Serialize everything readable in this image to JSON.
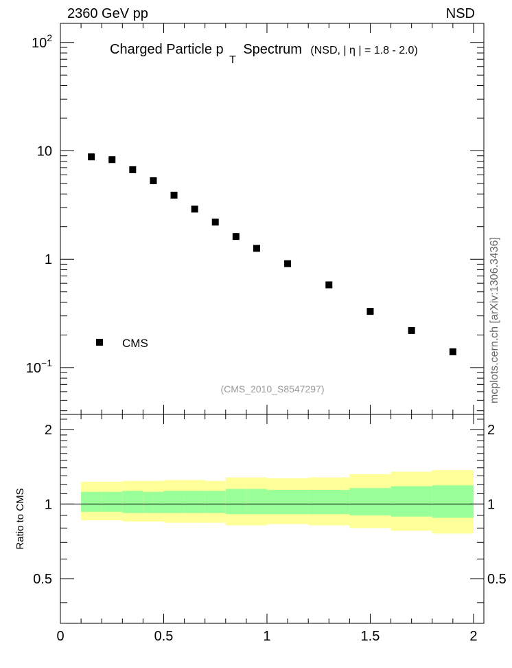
{
  "header": {
    "left": "2360 GeV pp",
    "right": "NSD"
  },
  "side_label": "mcplots.cern.ch [arXiv:1306.3436]",
  "colors": {
    "data": "#000000",
    "band_inner": "#99ff99",
    "band_outer": "#ffff99",
    "watermark": "#999999",
    "side_label": "#666666"
  },
  "chart_data": [
    {
      "type": "scatter",
      "title": "Charged Particle p",
      "title_subscript": "T",
      "title_suffix": "Spectrum",
      "subtitle_prefix": "(NSD, |",
      "subtitle_symbol": "η",
      "subtitle_suffix": "| = 1.8 - 2.0)",
      "watermark": "(CMS_2010_S8547297)",
      "legend": {
        "label": "CMS",
        "placement": "bottom-left"
      },
      "xlim": [
        0,
        2.05
      ],
      "ylim": [
        0.037,
        150
      ],
      "log_y": true,
      "y_ticks": [
        {
          "base": "10",
          "exp": "2",
          "value": 100
        },
        {
          "base": "10",
          "exp": "",
          "value": 10
        },
        {
          "base": "1",
          "exp": "",
          "value": 1
        },
        {
          "base": "10",
          "exp": "−1",
          "value": 0.1
        }
      ],
      "series": [
        {
          "name": "CMS",
          "x": [
            0.15,
            0.25,
            0.35,
            0.45,
            0.55,
            0.65,
            0.75,
            0.85,
            0.95,
            1.1,
            1.3,
            1.5,
            1.7,
            1.9
          ],
          "y": [
            8.8,
            8.3,
            6.7,
            5.3,
            3.9,
            2.9,
            2.2,
            1.62,
            1.26,
            0.91,
            0.58,
            0.33,
            0.22,
            0.14
          ]
        }
      ]
    },
    {
      "type": "area",
      "ylabel": "Ratio to CMS",
      "xlim": [
        0,
        2.05
      ],
      "ylim": [
        0.33,
        2.3
      ],
      "x_ticks": [
        "0",
        "0.5",
        "1",
        "1.5",
        "2"
      ],
      "x_tick_values": [
        0,
        0.5,
        1,
        1.5,
        2
      ],
      "y_ticks": [
        "0.5",
        "1",
        "2"
      ],
      "y_tick_values": [
        0.5,
        1,
        2
      ],
      "reference_line": 1,
      "bins": [
        {
          "lo": 0.1,
          "hi": 0.2,
          "inner": [
            0.93,
            1.12
          ],
          "outer": [
            0.86,
            1.23
          ]
        },
        {
          "lo": 0.2,
          "hi": 0.3,
          "inner": [
            0.93,
            1.12
          ],
          "outer": [
            0.86,
            1.23
          ]
        },
        {
          "lo": 0.3,
          "hi": 0.4,
          "inner": [
            0.92,
            1.13
          ],
          "outer": [
            0.85,
            1.24
          ]
        },
        {
          "lo": 0.4,
          "hi": 0.5,
          "inner": [
            0.92,
            1.12
          ],
          "outer": [
            0.85,
            1.24
          ]
        },
        {
          "lo": 0.5,
          "hi": 0.6,
          "inner": [
            0.92,
            1.13
          ],
          "outer": [
            0.84,
            1.25
          ]
        },
        {
          "lo": 0.6,
          "hi": 0.7,
          "inner": [
            0.92,
            1.13
          ],
          "outer": [
            0.84,
            1.25
          ]
        },
        {
          "lo": 0.7,
          "hi": 0.8,
          "inner": [
            0.92,
            1.13
          ],
          "outer": [
            0.84,
            1.24
          ]
        },
        {
          "lo": 0.8,
          "hi": 0.9,
          "inner": [
            0.91,
            1.15
          ],
          "outer": [
            0.82,
            1.28
          ]
        },
        {
          "lo": 0.9,
          "hi": 1.0,
          "inner": [
            0.91,
            1.15
          ],
          "outer": [
            0.82,
            1.28
          ]
        },
        {
          "lo": 1.0,
          "hi": 1.2,
          "inner": [
            0.91,
            1.14
          ],
          "outer": [
            0.83,
            1.27
          ]
        },
        {
          "lo": 1.2,
          "hi": 1.4,
          "inner": [
            0.91,
            1.14
          ],
          "outer": [
            0.82,
            1.28
          ]
        },
        {
          "lo": 1.4,
          "hi": 1.6,
          "inner": [
            0.9,
            1.16
          ],
          "outer": [
            0.8,
            1.32
          ]
        },
        {
          "lo": 1.6,
          "hi": 1.8,
          "inner": [
            0.89,
            1.18
          ],
          "outer": [
            0.78,
            1.35
          ]
        },
        {
          "lo": 1.8,
          "hi": 2.0,
          "inner": [
            0.88,
            1.19
          ],
          "outer": [
            0.76,
            1.37
          ]
        }
      ]
    }
  ]
}
